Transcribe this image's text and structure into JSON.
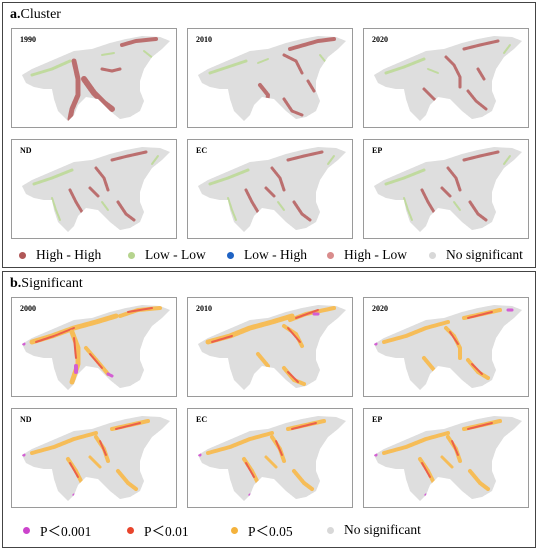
{
  "colors": {
    "high_high": "#b05757",
    "low_low": "#b6d48e",
    "low_high": "#1f63c4",
    "high_low": "#d98c8c",
    "not_significant": "#d8d8d8",
    "p001": "#cc44cc",
    "p01": "#e8452c",
    "p05": "#f4b23c"
  },
  "section_a": {
    "letter": "a.",
    "title": "Cluster",
    "panels": [
      {
        "label": "1990",
        "pattern": "cluster-1990"
      },
      {
        "label": "2010",
        "pattern": "cluster-2010"
      },
      {
        "label": "2020",
        "pattern": "cluster-2020"
      },
      {
        "label": "ND",
        "pattern": "cluster-scenario"
      },
      {
        "label": "EC",
        "pattern": "cluster-scenario"
      },
      {
        "label": "EP",
        "pattern": "cluster-scenario"
      }
    ],
    "legend": [
      {
        "label": "High - High",
        "color_key": "high_high"
      },
      {
        "label": "Low - Low",
        "color_key": "low_low"
      },
      {
        "label": "Low - High",
        "color_key": "low_high"
      },
      {
        "label": "High - Low",
        "color_key": "high_low"
      },
      {
        "label": "No significant",
        "color_key": "not_significant"
      }
    ]
  },
  "section_b": {
    "letter": "b.",
    "title": "Significant",
    "panels": [
      {
        "label": "2000",
        "pattern": "sig-2000"
      },
      {
        "label": "2010",
        "pattern": "sig-2010"
      },
      {
        "label": "2020",
        "pattern": "sig-2020"
      },
      {
        "label": "ND",
        "pattern": "sig-scenario"
      },
      {
        "label": "EC",
        "pattern": "sig-scenario"
      },
      {
        "label": "EP",
        "pattern": "sig-scenario"
      }
    ],
    "legend": [
      {
        "label": "P＜0.001",
        "color_key": "p001"
      },
      {
        "label": "P＜0.01",
        "color_key": "p01"
      },
      {
        "label": "P＜0.05",
        "color_key": "p05"
      },
      {
        "label": "No significant",
        "color_key": "not_significant"
      }
    ]
  }
}
